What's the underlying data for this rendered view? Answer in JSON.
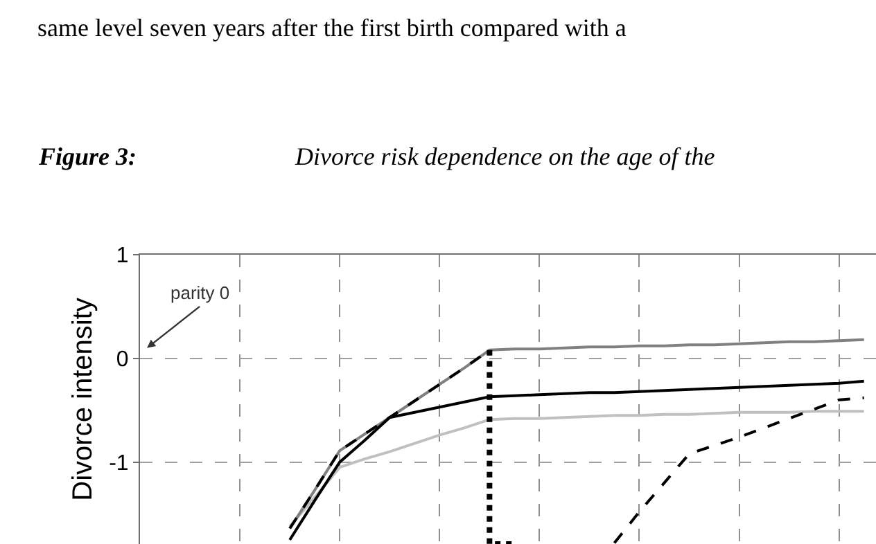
{
  "chart_data": {
    "type": "line",
    "title": "Figure 3:",
    "subtitle": "Divorce risk dependence on the age of the",
    "ylabel": "Divorce intensity",
    "annotations": [
      "same level seven years after the first birth compared with a",
      "parity 0"
    ],
    "categories": [
      null,
      null,
      null,
      null,
      null,
      null,
      null,
      null,
      null,
      null,
      null,
      null,
      null,
      null,
      null,
      null,
      null,
      null,
      null,
      null,
      null,
      null,
      null,
      null,
      null,
      null,
      null,
      null,
      null,
      null
    ],
    "ylim": [
      -1.79,
      1
    ],
    "yticks": [
      -1,
      0,
      1
    ],
    "tick_labels": "y",
    "grid": true,
    "marker": "none",
    "series": [
      {
        "color": "#c0c0c0",
        "line_style": "solid",
        "values": [
          null,
          null,
          null,
          null,
          null,
          null,
          -1.62,
          -1.34,
          -1.05,
          -0.97,
          -0.9,
          -0.82,
          -0.74,
          -0.67,
          -0.59,
          -0.58,
          -0.58,
          -0.57,
          -0.56,
          -0.55,
          -0.55,
          -0.54,
          -0.54,
          -0.53,
          -0.52,
          -0.52,
          -0.52,
          -0.51,
          -0.51,
          -0.51
        ]
      },
      {
        "color": "#808080",
        "line_style": "solid",
        "values": [
          null,
          null,
          null,
          null,
          null,
          null,
          -1.64,
          -1.27,
          -0.89,
          -0.73,
          -0.57,
          -0.41,
          -0.25,
          -0.09,
          0.08,
          0.09,
          0.09,
          0.1,
          0.11,
          0.11,
          0.12,
          0.12,
          0.13,
          0.13,
          0.14,
          0.15,
          0.16,
          0.16,
          0.17,
          0.18
        ]
      },
      {
        "color": "#000000",
        "line_style": "solid",
        "values": [
          null,
          null,
          null,
          null,
          null,
          null,
          -1.75,
          -1.37,
          -1.0,
          -0.79,
          -0.57,
          -0.52,
          -0.47,
          -0.42,
          -0.37,
          -0.36,
          -0.35,
          -0.34,
          -0.33,
          -0.33,
          -0.32,
          -0.31,
          -0.3,
          -0.29,
          -0.28,
          -0.27,
          -0.26,
          -0.25,
          -0.24,
          -0.22
        ]
      },
      {
        "color": "#000000",
        "line_style": "dashed",
        "values": [
          null,
          null,
          null,
          null,
          null,
          null,
          -1.64,
          -1.27,
          -0.89,
          -0.73,
          -0.57,
          -0.41,
          -0.25,
          -0.09,
          0.08,
          null,
          null,
          null,
          null,
          null,
          null,
          null,
          null,
          null,
          null,
          null,
          null,
          null,
          null,
          null
        ]
      },
      {
        "type": "step",
        "color": "#000000",
        "line_style": "dotted",
        "values": [
          null,
          null,
          null,
          null,
          null,
          null,
          null,
          null,
          null,
          null,
          null,
          null,
          null,
          null,
          0.08,
          -1.79,
          null,
          null,
          null,
          null,
          null,
          null,
          null,
          null,
          null,
          null,
          null,
          null,
          null,
          null
        ]
      },
      {
        "color": "#000000",
        "line_style": "dashed",
        "values": [
          null,
          null,
          null,
          null,
          null,
          null,
          null,
          null,
          null,
          null,
          null,
          null,
          null,
          null,
          null,
          null,
          null,
          null,
          null,
          -1.78,
          -1.48,
          -1.2,
          -0.92,
          -0.84,
          -0.76,
          -0.67,
          -0.58,
          -0.49,
          -0.4,
          -0.38
        ]
      }
    ]
  }
}
